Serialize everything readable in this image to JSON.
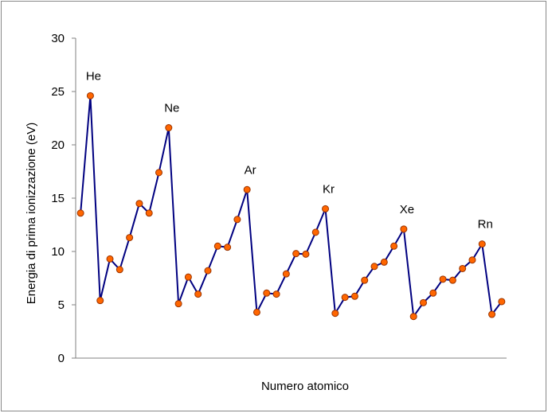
{
  "chart_data": {
    "type": "line",
    "ylabel": "Energia di prima ionizzazione (eV)",
    "xlabel": "Numero atomico",
    "categories": [
      null,
      null,
      null,
      null,
      null,
      null,
      null,
      null,
      null,
      null,
      null,
      null,
      null,
      null,
      null,
      null,
      null,
      null,
      null,
      null,
      null,
      null,
      null,
      null,
      null,
      null,
      null,
      null,
      null,
      null,
      null,
      null,
      null,
      null,
      null,
      null,
      null,
      null,
      null,
      null,
      null,
      null,
      null,
      null
    ],
    "series": [
      {
        "name": null,
        "color": "#000080",
        "marker_color": "#ff6600",
        "values": [
          13.6,
          24.6,
          5.4,
          9.3,
          8.3,
          11.3,
          14.5,
          13.6,
          17.4,
          21.6,
          5.1,
          7.6,
          6.0,
          8.2,
          10.5,
          10.4,
          13.0,
          15.8,
          4.3,
          6.1,
          6.0,
          7.9,
          9.8,
          9.75,
          11.8,
          14.0,
          4.2,
          5.7,
          5.8,
          7.3,
          8.6,
          9.0,
          10.5,
          12.1,
          3.9,
          5.2,
          6.1,
          7.4,
          7.3,
          8.4,
          9.2,
          10.7,
          4.1,
          5.3
        ]
      }
    ],
    "annotations": [
      "He",
      "Ne",
      "Ar",
      "Kr",
      "Xe",
      "Rn"
    ],
    "ylim": [
      0,
      30
    ],
    "yticks": [
      0,
      5,
      10,
      15,
      20,
      25,
      30
    ],
    "grid": false
  }
}
